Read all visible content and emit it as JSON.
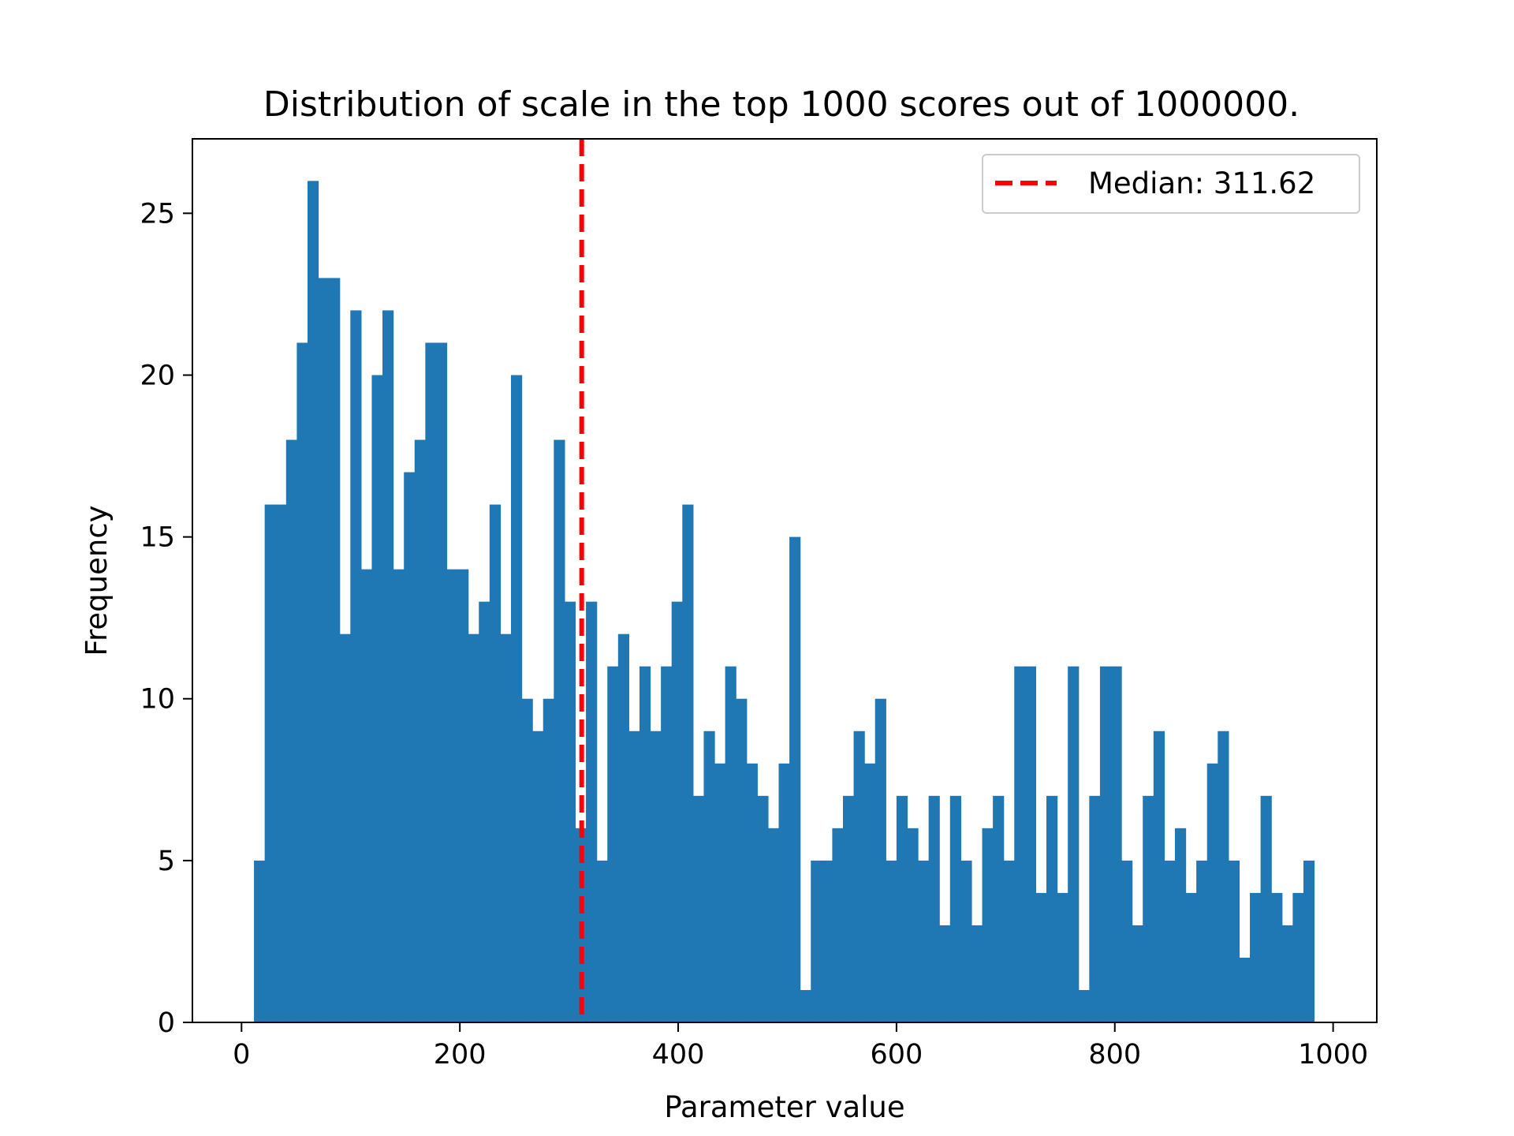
{
  "chart_data": {
    "type": "bar",
    "title": "Distribution of scale in the top 1000 scores out of 1000000.",
    "xlabel": "Parameter value",
    "ylabel": "Frequency",
    "xlim": [
      -45,
      1040
    ],
    "ylim": [
      0,
      27.3
    ],
    "xticks": [
      0,
      200,
      400,
      600,
      800,
      1000
    ],
    "yticks": [
      0,
      5,
      10,
      15,
      20,
      25
    ],
    "bin_start": 11.4,
    "bin_width": 9.81,
    "values": [
      5,
      16,
      16,
      18,
      21,
      26,
      23,
      23,
      12,
      22,
      14,
      20,
      22,
      14,
      17,
      18,
      21,
      21,
      14,
      14,
      12,
      13,
      16,
      12,
      20,
      10,
      9,
      10,
      18,
      13,
      6,
      13,
      5,
      11,
      12,
      9,
      11,
      9,
      11,
      13,
      16,
      7,
      9,
      8,
      11,
      10,
      8,
      7,
      6,
      8,
      15,
      1,
      5,
      5,
      6,
      7,
      9,
      8,
      10,
      5,
      7,
      6,
      5,
      7,
      3,
      7,
      5,
      3,
      6,
      7,
      5,
      11,
      11,
      4,
      7,
      4,
      11,
      1,
      7,
      11,
      11,
      5,
      3,
      7,
      9,
      5,
      6,
      4,
      5,
      8,
      9,
      5,
      2,
      4,
      7,
      4,
      3,
      4,
      5
    ],
    "bar_color": "#1f77b4",
    "median": {
      "value": 311.62,
      "label": "Median: 311.62",
      "color": "#ff0000"
    },
    "legend_position": "upper right",
    "grid": false
  }
}
